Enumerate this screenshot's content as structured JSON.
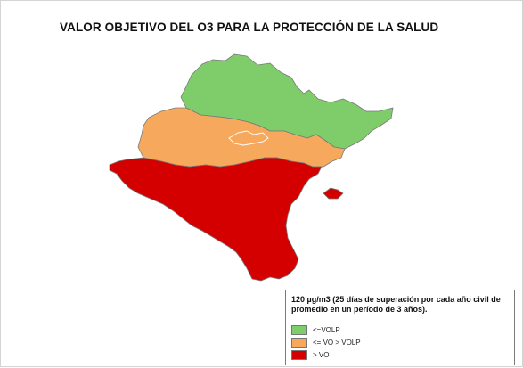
{
  "title": "VALOR OBJETIVO DEL O3 PARA LA PROTECCIÓN DE LA SALUD",
  "legend": {
    "note": "120 µg/m3 (25 días de superación por cada año civil de promedio en un período de 3 años).",
    "items": [
      {
        "label": "<=VOLP",
        "color": "#7fcc6a"
      },
      {
        "label": "<= VO > VOLP",
        "color": "#f6a95c"
      },
      {
        "label": "> VO",
        "color": "#d40000"
      }
    ]
  },
  "zones": {
    "north_color": "#7fcc6a",
    "middle_color": "#f6a95c",
    "south_color": "#d40000",
    "border_color": "#7a7a7a"
  }
}
